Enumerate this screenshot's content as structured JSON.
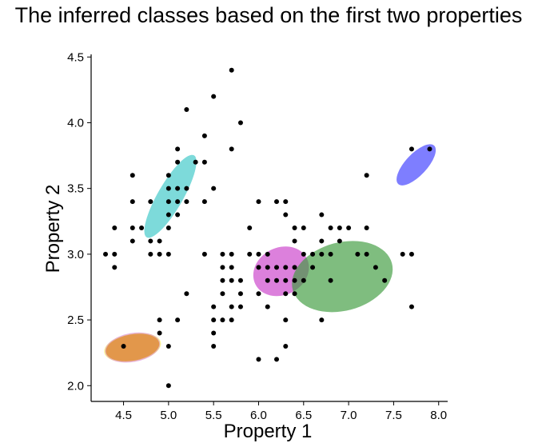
{
  "chart_data": {
    "type": "scatter",
    "title": "The inferred classes based on the first two properties",
    "xlabel": "Property 1",
    "ylabel": "Property 2",
    "xlim": [
      4.14,
      8.1
    ],
    "ylim": [
      1.88,
      4.52
    ],
    "xticks": [
      "4.5",
      "5.0",
      "5.5",
      "6.0",
      "6.5",
      "7.0",
      "7.5",
      "8.0"
    ],
    "yticks": [
      "2.0",
      "2.5",
      "3.0",
      "3.5",
      "4.0",
      "4.5"
    ],
    "grid": false,
    "legend": "none",
    "point_color": "#000000",
    "points": [
      [
        4.3,
        3.0
      ],
      [
        4.4,
        2.9
      ],
      [
        4.4,
        3.0
      ],
      [
        4.4,
        3.2
      ],
      [
        4.5,
        2.3
      ],
      [
        4.6,
        3.1
      ],
      [
        4.6,
        3.2
      ],
      [
        4.6,
        3.4
      ],
      [
        4.6,
        3.6
      ],
      [
        4.7,
        3.2
      ],
      [
        4.8,
        3.0
      ],
      [
        4.8,
        3.1
      ],
      [
        4.8,
        3.4
      ],
      [
        4.9,
        2.4
      ],
      [
        4.9,
        2.5
      ],
      [
        4.9,
        3.0
      ],
      [
        4.9,
        3.1
      ],
      [
        5.0,
        2.0
      ],
      [
        5.0,
        2.3
      ],
      [
        5.0,
        3.0
      ],
      [
        5.0,
        3.2
      ],
      [
        5.0,
        3.3
      ],
      [
        5.0,
        3.4
      ],
      [
        5.0,
        3.5
      ],
      [
        5.0,
        3.6
      ],
      [
        5.1,
        2.5
      ],
      [
        5.1,
        3.3
      ],
      [
        5.1,
        3.4
      ],
      [
        5.1,
        3.5
      ],
      [
        5.1,
        3.7
      ],
      [
        5.1,
        3.8
      ],
      [
        5.2,
        2.7
      ],
      [
        5.2,
        3.4
      ],
      [
        5.2,
        3.5
      ],
      [
        5.2,
        4.1
      ],
      [
        5.3,
        3.7
      ],
      [
        5.4,
        3.0
      ],
      [
        5.4,
        3.4
      ],
      [
        5.4,
        3.7
      ],
      [
        5.4,
        3.9
      ],
      [
        5.5,
        2.3
      ],
      [
        5.5,
        2.4
      ],
      [
        5.5,
        2.5
      ],
      [
        5.5,
        2.6
      ],
      [
        5.5,
        3.5
      ],
      [
        5.5,
        4.2
      ],
      [
        5.6,
        2.5
      ],
      [
        5.6,
        2.7
      ],
      [
        5.6,
        2.8
      ],
      [
        5.6,
        2.9
      ],
      [
        5.6,
        3.0
      ],
      [
        5.7,
        2.5
      ],
      [
        5.7,
        2.6
      ],
      [
        5.7,
        2.8
      ],
      [
        5.7,
        2.9
      ],
      [
        5.7,
        3.0
      ],
      [
        5.7,
        3.8
      ],
      [
        5.7,
        4.4
      ],
      [
        5.8,
        2.6
      ],
      [
        5.8,
        2.7
      ],
      [
        5.8,
        2.8
      ],
      [
        5.8,
        4.0
      ],
      [
        5.9,
        3.0
      ],
      [
        5.9,
        3.2
      ],
      [
        6.0,
        2.2
      ],
      [
        6.0,
        2.7
      ],
      [
        6.0,
        2.9
      ],
      [
        6.0,
        3.0
      ],
      [
        6.0,
        3.4
      ],
      [
        6.1,
        2.6
      ],
      [
        6.1,
        2.8
      ],
      [
        6.1,
        2.9
      ],
      [
        6.1,
        3.0
      ],
      [
        6.2,
        2.2
      ],
      [
        6.2,
        2.8
      ],
      [
        6.2,
        2.9
      ],
      [
        6.2,
        3.4
      ],
      [
        6.3,
        2.3
      ],
      [
        6.3,
        2.5
      ],
      [
        6.3,
        2.7
      ],
      [
        6.3,
        2.8
      ],
      [
        6.3,
        2.9
      ],
      [
        6.3,
        3.3
      ],
      [
        6.3,
        3.4
      ],
      [
        6.4,
        2.7
      ],
      [
        6.4,
        2.8
      ],
      [
        6.4,
        2.9
      ],
      [
        6.4,
        3.1
      ],
      [
        6.4,
        3.2
      ],
      [
        6.5,
        2.8
      ],
      [
        6.5,
        3.0
      ],
      [
        6.5,
        3.2
      ],
      [
        6.6,
        2.9
      ],
      [
        6.6,
        3.0
      ],
      [
        6.7,
        2.5
      ],
      [
        6.7,
        3.0
      ],
      [
        6.7,
        3.1
      ],
      [
        6.7,
        3.3
      ],
      [
        6.8,
        2.8
      ],
      [
        6.8,
        3.0
      ],
      [
        6.8,
        3.2
      ],
      [
        6.9,
        3.1
      ],
      [
        6.9,
        3.2
      ],
      [
        7.0,
        3.2
      ],
      [
        7.1,
        3.0
      ],
      [
        7.2,
        3.0
      ],
      [
        7.2,
        3.2
      ],
      [
        7.2,
        3.6
      ],
      [
        7.3,
        2.9
      ],
      [
        7.4,
        2.8
      ],
      [
        7.6,
        3.0
      ],
      [
        7.7,
        2.6
      ],
      [
        7.7,
        3.0
      ],
      [
        7.7,
        3.8
      ],
      [
        7.9,
        3.8
      ]
    ],
    "ellipses": [
      {
        "center": [
          5.02,
          3.44
        ],
        "rx": 0.14,
        "ry": 0.36,
        "angle_deg": 30,
        "color": "#40c8c8",
        "opacity": 0.68
      },
      {
        "center": [
          6.25,
          2.87
        ],
        "rx": 0.32,
        "ry": 0.18,
        "angle_deg": -27,
        "color": "#cc44cc",
        "opacity": 0.68
      },
      {
        "center": [
          6.93,
          2.83
        ],
        "rx": 0.57,
        "ry": 0.26,
        "angle_deg": -15,
        "color": "#3a9a3a",
        "opacity": 0.65
      },
      {
        "center": [
          7.75,
          3.68
        ],
        "rx": 0.12,
        "ry": 0.2,
        "angle_deg": 43,
        "color": "#2020ff",
        "opacity": 0.58
      },
      {
        "center": [
          4.6,
          2.29
        ],
        "rx": 0.32,
        "ry": 0.105,
        "angle_deg": -10,
        "color": "#ffff30",
        "opacity": 0.5
      },
      {
        "center": [
          4.6,
          2.29
        ],
        "rx": 0.31,
        "ry": 0.11,
        "angle_deg": -10,
        "color": "#d06ad0",
        "opacity": 0.5
      },
      {
        "center": [
          4.6,
          2.29
        ],
        "rx": 0.3,
        "ry": 0.1,
        "angle_deg": -10,
        "color": "#e08a20",
        "opacity": 0.7
      }
    ]
  }
}
